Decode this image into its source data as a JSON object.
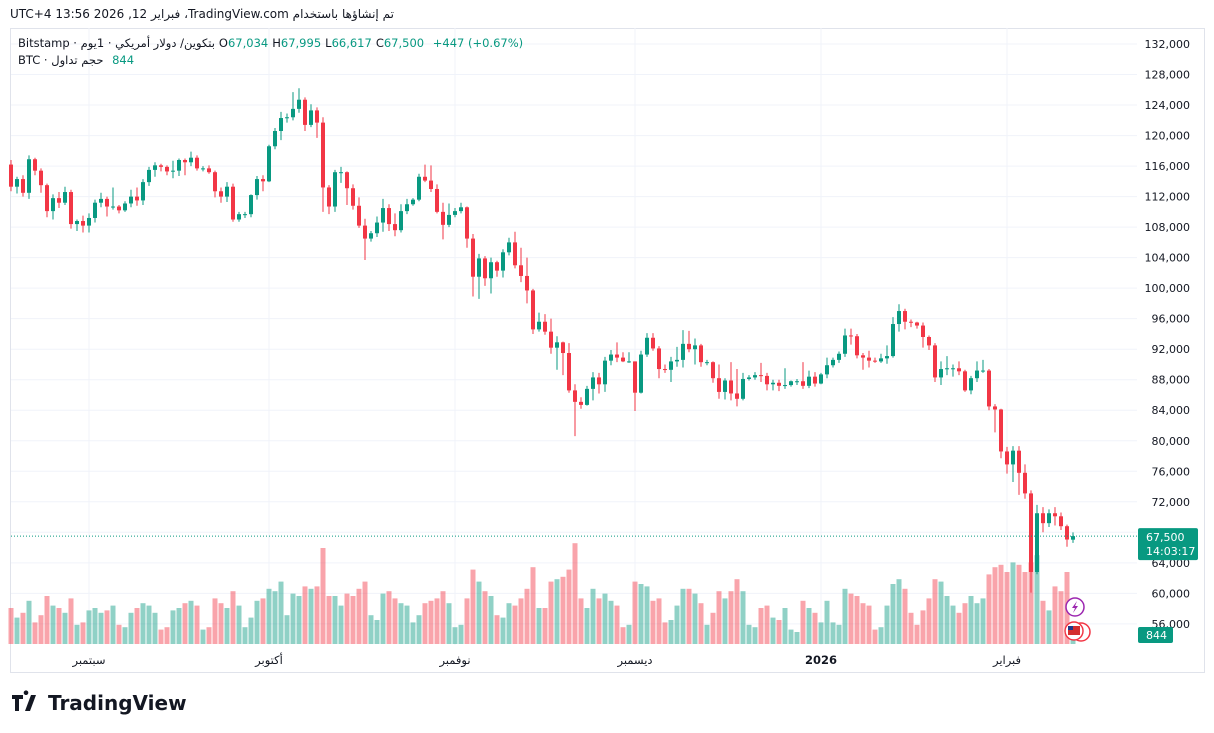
{
  "chart_data": {
    "type": "candlestick",
    "header": "تم إنشاؤها باستخدام TradingView.com، فبراير 12, 2026 13:56 UTC+4",
    "symbol": "بتكوين/ دولار أمريكي · 1يوم · Bitstamp",
    "fields": [
      {
        "key": "O",
        "value": 67034,
        "label": "67,034"
      },
      {
        "key": "H",
        "value": 67995,
        "label": "67,995"
      },
      {
        "key": "L",
        "value": 66617,
        "label": "66,617"
      },
      {
        "key": "C",
        "value": 67500,
        "label": "67,500"
      }
    ],
    "change": {
      "value": 447,
      "label": "+447 (+0.67%)"
    },
    "volume_title": "حجم تداول · BTC",
    "countdown": "14:03:17",
    "brand": "TradingView",
    "up_color": "#089981",
    "down_color": "#f23645",
    "ylim": [
      53230,
      134100
    ],
    "volume_lim": [
      0,
      5000
    ],
    "grid": true,
    "yticks": [
      {
        "value": 56000,
        "label": "56,000"
      },
      {
        "value": 60000,
        "label": "60,000"
      },
      {
        "value": 64000,
        "label": "64,000"
      },
      {
        "value": 68000,
        "label": "68,000"
      },
      {
        "value": 72000,
        "label": "72,000"
      },
      {
        "value": 76000,
        "label": "76,000"
      },
      {
        "value": 80000,
        "label": "80,000"
      },
      {
        "value": 84000,
        "label": "84,000"
      },
      {
        "value": 88000,
        "label": "88,000"
      },
      {
        "value": 92000,
        "label": "92,000"
      },
      {
        "value": 96000,
        "label": "96,000"
      },
      {
        "value": 100000,
        "label": "100,000"
      },
      {
        "value": 104000,
        "label": "104,000"
      },
      {
        "value": 108000,
        "label": "108,000"
      },
      {
        "value": 112000,
        "label": "112,000"
      },
      {
        "value": 116000,
        "label": "116,000"
      },
      {
        "value": 120000,
        "label": "120,000"
      },
      {
        "value": 124000,
        "label": "124,000"
      },
      {
        "value": 128000,
        "label": "128,000"
      },
      {
        "value": 132000,
        "label": "132,000"
      }
    ],
    "xticks": [
      {
        "value": 13,
        "label": "سبتمبر"
      },
      {
        "value": 43,
        "label": "أكتوبر"
      },
      {
        "value": 74,
        "label": "نوفمبر"
      },
      {
        "value": 104,
        "label": "ديسمبر"
      },
      {
        "value": 135,
        "label": "2026"
      },
      {
        "value": 166,
        "label": "فبراير"
      }
    ],
    "ohlc": [
      [
        116200,
        116800,
        112700,
        113300
      ],
      [
        113300,
        114600,
        112400,
        114300
      ],
      [
        114300,
        114800,
        112000,
        112500
      ],
      [
        112500,
        117400,
        111700,
        116900
      ],
      [
        116900,
        117100,
        114800,
        115400
      ],
      [
        115400,
        115700,
        112500,
        113500
      ],
      [
        113500,
        113700,
        109300,
        110100
      ],
      [
        110100,
        112300,
        109000,
        111800
      ],
      [
        111800,
        112600,
        110500,
        111200
      ],
      [
        111200,
        113300,
        110900,
        112600
      ],
      [
        112600,
        112900,
        107800,
        108400
      ],
      [
        108400,
        109000,
        107500,
        108800
      ],
      [
        108800,
        109500,
        107300,
        108200
      ],
      [
        108200,
        109800,
        107300,
        109200
      ],
      [
        109200,
        111600,
        108600,
        111200
      ],
      [
        111200,
        112500,
        110600,
        111700
      ],
      [
        111700,
        112000,
        109400,
        110700
      ],
      [
        110700,
        113200,
        110300,
        110700
      ],
      [
        110700,
        110900,
        109800,
        110200
      ],
      [
        110200,
        111400,
        110000,
        111100
      ],
      [
        111100,
        112900,
        110600,
        112000
      ],
      [
        112000,
        113200,
        110800,
        111500
      ],
      [
        111500,
        114300,
        110900,
        113900
      ],
      [
        113900,
        115900,
        113400,
        115500
      ],
      [
        115500,
        116500,
        114600,
        116100
      ],
      [
        116100,
        116300,
        115300,
        115900
      ],
      [
        115900,
        116100,
        114800,
        115300
      ],
      [
        115300,
        116700,
        114400,
        115400
      ],
      [
        115400,
        117000,
        114700,
        116800
      ],
      [
        116800,
        117000,
        114800,
        116500
      ],
      [
        116500,
        117900,
        116000,
        117100
      ],
      [
        117100,
        117400,
        115400,
        115700
      ],
      [
        115700,
        116000,
        115300,
        115700
      ],
      [
        115700,
        116100,
        115000,
        115200
      ],
      [
        115200,
        115400,
        111900,
        112700
      ],
      [
        112700,
        113200,
        111200,
        112000
      ],
      [
        112000,
        113900,
        111300,
        113300
      ],
      [
        113300,
        113700,
        108700,
        109000
      ],
      [
        109000,
        110000,
        108700,
        109700
      ],
      [
        109700,
        110000,
        109200,
        109700
      ],
      [
        109700,
        112300,
        109300,
        112200
      ],
      [
        112200,
        114700,
        111600,
        114300
      ],
      [
        114300,
        114800,
        112700,
        114000
      ],
      [
        114000,
        118800,
        113900,
        118600
      ],
      [
        118600,
        121000,
        118200,
        120600
      ],
      [
        120600,
        123100,
        119400,
        122300
      ],
      [
        122300,
        122900,
        121700,
        122400
      ],
      [
        122400,
        125700,
        122000,
        123500
      ],
      [
        123500,
        126200,
        123000,
        124700
      ],
      [
        124700,
        125000,
        120600,
        121400
      ],
      [
        121400,
        124100,
        121100,
        123300
      ],
      [
        123300,
        123700,
        119700,
        121700
      ],
      [
        121700,
        122400,
        110000,
        113200
      ],
      [
        113200,
        113500,
        109700,
        110700
      ],
      [
        110700,
        115500,
        110000,
        115200
      ],
      [
        115200,
        115900,
        113800,
        115200
      ],
      [
        115200,
        115300,
        110900,
        113100
      ],
      [
        113100,
        113600,
        110300,
        110800
      ],
      [
        110800,
        111900,
        107900,
        108200
      ],
      [
        108200,
        109100,
        103700,
        106500
      ],
      [
        106500,
        107500,
        106100,
        107200
      ],
      [
        107200,
        109400,
        106700,
        108600
      ],
      [
        108600,
        111700,
        107400,
        110500
      ],
      [
        110500,
        111000,
        107500,
        108400
      ],
      [
        108400,
        109800,
        106800,
        107600
      ],
      [
        107600,
        111000,
        107300,
        110100
      ],
      [
        110100,
        111700,
        109700,
        111000
      ],
      [
        111000,
        111800,
        110800,
        111600
      ],
      [
        111600,
        115000,
        111400,
        114600
      ],
      [
        114600,
        116200,
        113900,
        114100
      ],
      [
        114100,
        116100,
        112600,
        113000
      ],
      [
        113000,
        113600,
        109800,
        110000
      ],
      [
        110000,
        111200,
        106400,
        108300
      ],
      [
        108300,
        111100,
        108000,
        109600
      ],
      [
        109600,
        110500,
        109300,
        110100
      ],
      [
        110100,
        111200,
        109800,
        110600
      ],
      [
        110600,
        110700,
        105300,
        106500
      ],
      [
        106500,
        107100,
        98900,
        101500
      ],
      [
        101500,
        104500,
        98600,
        103900
      ],
      [
        103900,
        104200,
        100300,
        101300
      ],
      [
        101300,
        104000,
        99300,
        103400
      ],
      [
        103400,
        103600,
        101500,
        102300
      ],
      [
        102300,
        105100,
        101400,
        104700
      ],
      [
        104700,
        106600,
        104300,
        106000
      ],
      [
        106000,
        107400,
        102600,
        103000
      ],
      [
        103000,
        105300,
        100800,
        101600
      ],
      [
        101600,
        104000,
        98000,
        99700
      ],
      [
        99700,
        99900,
        94000,
        94600
      ],
      [
        94600,
        96800,
        94300,
        95600
      ],
      [
        95600,
        96600,
        93900,
        94300
      ],
      [
        94300,
        96000,
        91400,
        92200
      ],
      [
        92200,
        93700,
        89300,
        92900
      ],
      [
        92900,
        93000,
        88600,
        91500
      ],
      [
        91500,
        92800,
        86300,
        86600
      ],
      [
        86600,
        87400,
        80600,
        85100
      ],
      [
        85100,
        85700,
        84200,
        84700
      ],
      [
        84700,
        87200,
        84600,
        86800
      ],
      [
        86800,
        89000,
        85300,
        88300
      ],
      [
        88300,
        88900,
        86200,
        87400
      ],
      [
        87400,
        91000,
        86400,
        90500
      ],
      [
        90500,
        91900,
        89900,
        91300
      ],
      [
        91300,
        92900,
        90300,
        90900
      ],
      [
        90900,
        91600,
        90300,
        90400
      ],
      [
        90400,
        91600,
        90200,
        90400
      ],
      [
        90400,
        90400,
        83900,
        86300
      ],
      [
        86300,
        91800,
        86200,
        91300
      ],
      [
        91300,
        94100,
        91000,
        93500
      ],
      [
        93500,
        94100,
        91800,
        92100
      ],
      [
        92100,
        92400,
        88200,
        89400
      ],
      [
        89400,
        90000,
        88900,
        89300
      ],
      [
        89300,
        91000,
        87700,
        90400
      ],
      [
        90400,
        92300,
        89700,
        90600
      ],
      [
        90600,
        94500,
        89600,
        92700
      ],
      [
        92700,
        94400,
        91600,
        92000
      ],
      [
        92000,
        93400,
        90000,
        92500
      ],
      [
        92500,
        92700,
        89700,
        90300
      ],
      [
        90300,
        90600,
        89900,
        90300
      ],
      [
        90300,
        90400,
        87600,
        88200
      ],
      [
        88200,
        90000,
        85500,
        86400
      ],
      [
        86400,
        88200,
        85400,
        87900
      ],
      [
        87900,
        90300,
        85300,
        86200
      ],
      [
        86200,
        89400,
        84500,
        85500
      ],
      [
        85500,
        88900,
        85300,
        88100
      ],
      [
        88100,
        88600,
        87900,
        88300
      ],
      [
        88300,
        89000,
        88000,
        88600
      ],
      [
        88600,
        90200,
        87700,
        88500
      ],
      [
        88500,
        88900,
        86600,
        87400
      ],
      [
        87400,
        88000,
        86600,
        87600
      ],
      [
        87600,
        88000,
        86500,
        87200
      ],
      [
        87200,
        89500,
        86800,
        87300
      ],
      [
        87300,
        87900,
        87100,
        87800
      ],
      [
        87800,
        88100,
        87300,
        87800
      ],
      [
        87800,
        90300,
        86800,
        87200
      ],
      [
        87200,
        89200,
        86900,
        88400
      ],
      [
        88400,
        89000,
        87100,
        87500
      ],
      [
        87500,
        88900,
        87400,
        88700
      ],
      [
        88700,
        90900,
        88200,
        89900
      ],
      [
        89900,
        90900,
        89600,
        90600
      ],
      [
        90600,
        91700,
        90200,
        91400
      ],
      [
        91400,
        94700,
        91000,
        93800
      ],
      [
        93800,
        94700,
        92600,
        93700
      ],
      [
        93700,
        94000,
        90800,
        91200
      ],
      [
        91200,
        91500,
        89300,
        90900
      ],
      [
        90900,
        91800,
        89600,
        90500
      ],
      [
        90500,
        90900,
        90200,
        90400
      ],
      [
        90400,
        91400,
        90200,
        90800
      ],
      [
        90800,
        92500,
        90100,
        91100
      ],
      [
        91100,
        96200,
        90900,
        95300
      ],
      [
        95300,
        97900,
        94300,
        97000
      ],
      [
        97000,
        97300,
        94600,
        95600
      ],
      [
        95600,
        95900,
        94900,
        95500
      ],
      [
        95500,
        95600,
        94700,
        95100
      ],
      [
        95100,
        95500,
        92200,
        93600
      ],
      [
        93600,
        93800,
        91900,
        92500
      ],
      [
        92500,
        92800,
        87700,
        88300
      ],
      [
        88300,
        90400,
        87300,
        89400
      ],
      [
        89400,
        91100,
        88600,
        89500
      ],
      [
        89500,
        90000,
        88400,
        89500
      ],
      [
        89500,
        90400,
        88600,
        89100
      ],
      [
        89100,
        89300,
        86400,
        86600
      ],
      [
        86600,
        88500,
        86100,
        88200
      ],
      [
        88200,
        90400,
        87700,
        89200
      ],
      [
        89200,
        90600,
        88900,
        89200
      ],
      [
        89200,
        89400,
        84000,
        84500
      ],
      [
        84500,
        84800,
        81100,
        84100
      ],
      [
        84100,
        84200,
        77700,
        78600
      ],
      [
        78600,
        79200,
        75700,
        76900
      ],
      [
        76900,
        79300,
        74600,
        78700
      ],
      [
        78700,
        79300,
        72900,
        75800
      ],
      [
        75800,
        76900,
        72400,
        73100
      ],
      [
        73100,
        73500,
        60100,
        62800
      ],
      [
        62800,
        71600,
        62500,
        70500
      ],
      [
        70500,
        71300,
        68000,
        69200
      ],
      [
        69200,
        71000,
        68700,
        70500
      ],
      [
        70500,
        71300,
        68900,
        70100
      ],
      [
        70100,
        70600,
        68300,
        68800
      ],
      [
        68800,
        69000,
        66100,
        67053
      ],
      [
        67034,
        67995,
        66617,
        67500
      ]
    ],
    "volume": [
      1500,
      1100,
      1300,
      1800,
      900,
      1200,
      2000,
      1600,
      1500,
      1300,
      1900,
      800,
      900,
      1400,
      1500,
      1300,
      1400,
      1600,
      800,
      700,
      1300,
      1500,
      1700,
      1600,
      1300,
      600,
      700,
      1400,
      1500,
      1700,
      1800,
      1600,
      600,
      700,
      1900,
      1700,
      1500,
      2200,
      1600,
      700,
      1100,
      1800,
      1900,
      2300,
      2200,
      2600,
      1200,
      2100,
      2000,
      2400,
      2300,
      2400,
      4000,
      2000,
      2000,
      1600,
      2100,
      2000,
      2300,
      2600,
      1200,
      1000,
      2100,
      2200,
      1900,
      1700,
      1600,
      900,
      1200,
      1700,
      1800,
      1900,
      2200,
      1700,
      700,
      800,
      1900,
      3100,
      2600,
      2200,
      2000,
      1200,
      1100,
      1700,
      1600,
      1900,
      2300,
      3200,
      1500,
      1500,
      2600,
      2700,
      2800,
      3100,
      4200,
      1900,
      1500,
      2300,
      1900,
      2100,
      1800,
      1600,
      700,
      800,
      2600,
      2500,
      2400,
      1800,
      1900,
      900,
      1000,
      1600,
      2300,
      2300,
      2100,
      1700,
      800,
      1300,
      2200,
      1900,
      2200,
      2700,
      2200,
      800,
      700,
      1500,
      1600,
      1100,
      1000,
      1500,
      600,
      500,
      1800,
      1500,
      1300,
      900,
      1800,
      900,
      800,
      2300,
      2100,
      2000,
      1700,
      1600,
      600,
      700,
      1600,
      2500,
      2700,
      2300,
      1300,
      800,
      1400,
      1900,
      2700,
      2600,
      2000,
      1600,
      1300,
      1700,
      2000,
      1700,
      1900,
      2900,
      3200,
      3300,
      3000,
      3400,
      3300,
      3000,
      3400,
      3700,
      1800,
      1400,
      2400,
      2200,
      3000,
      844
    ]
  }
}
